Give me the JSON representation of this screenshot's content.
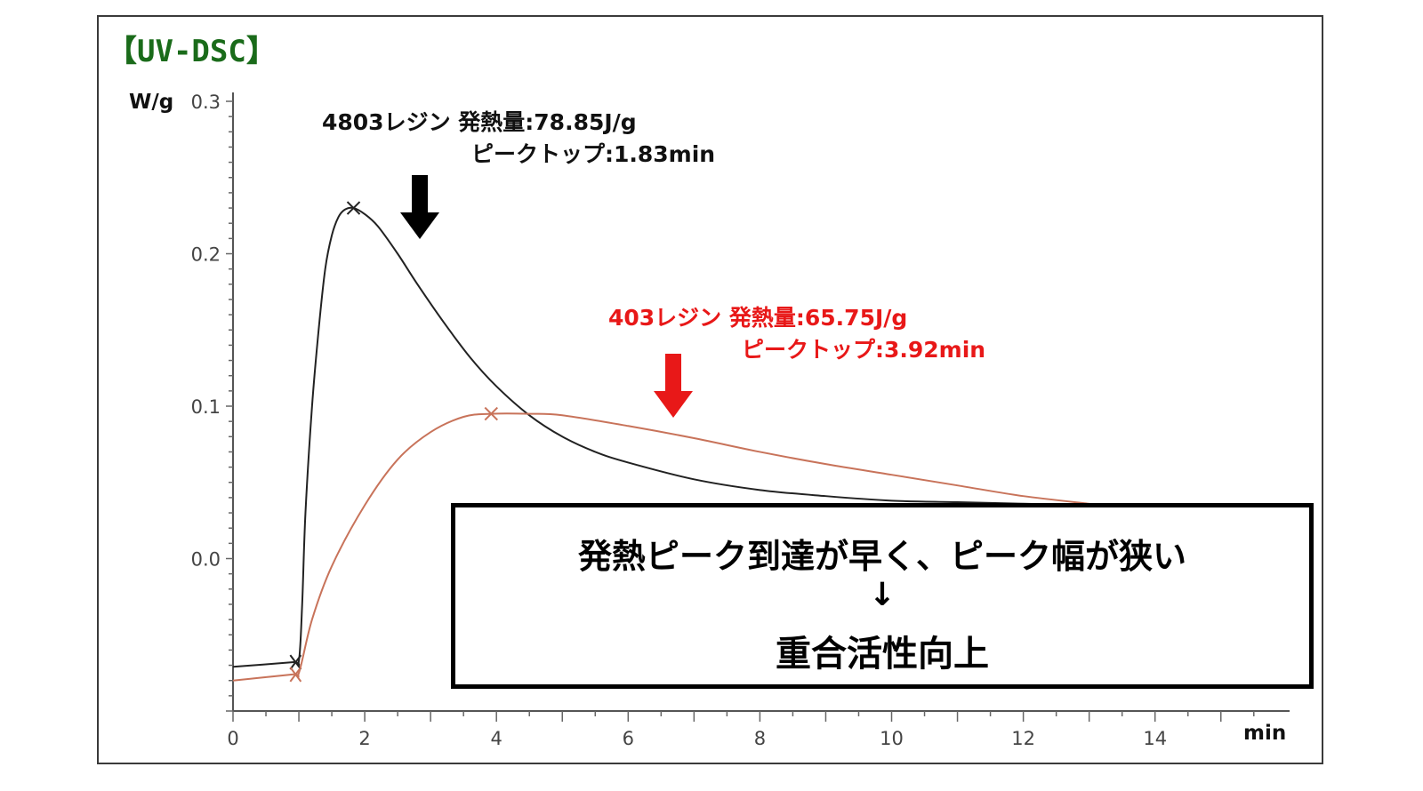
{
  "title": "【UV-DSC】",
  "annotations": {
    "black": {
      "line1": "4803レジン  発熱量:78.85J/g",
      "line2": "ピークトップ:1.83min",
      "color": "#111111"
    },
    "red": {
      "line1": "403レジン  発熱量:65.75J/g",
      "line2": "ピークトップ:3.92min",
      "color": "#e81818"
    }
  },
  "conclusion": {
    "line1": "発熱ピーク到達が早く、ピーク幅が狭い",
    "arrow": "↓",
    "line2": "重合活性向上"
  },
  "colors": {
    "black_series": "#222222",
    "red_series": "#c8735a",
    "black_arrow": "#000000",
    "red_arrow": "#e81818"
  },
  "chart_data": {
    "type": "line",
    "title": "",
    "xlabel": "min",
    "ylabel": "W/g",
    "xlim": [
      0,
      15.8
    ],
    "ylim": [
      -0.1,
      0.3
    ],
    "xticks": [
      0,
      2,
      4,
      6,
      8,
      10,
      12,
      14
    ],
    "xtick_labels": [
      "0",
      "2",
      "4",
      "6",
      "8",
      "10",
      "12",
      "14"
    ],
    "yticks": [
      0.0,
      0.1,
      0.2,
      0.3
    ],
    "ytick_labels": [
      "0.0",
      "0.1",
      "0.2",
      "0.3"
    ],
    "grid": false,
    "series": [
      {
        "name": "4803レジン",
        "x": [
          0.0,
          0.9,
          1.0,
          1.05,
          1.1,
          1.2,
          1.3,
          1.4,
          1.5,
          1.6,
          1.7,
          1.83,
          2.0,
          2.2,
          2.5,
          2.8,
          3.2,
          3.6,
          4.0,
          4.5,
          5.0,
          5.5,
          6.0,
          7.0,
          8.0,
          9.0,
          10.0,
          11.0,
          12.0,
          13.0
        ],
        "y": [
          -0.071,
          -0.068,
          -0.067,
          -0.03,
          0.03,
          0.1,
          0.15,
          0.19,
          0.212,
          0.224,
          0.229,
          0.23,
          0.226,
          0.218,
          0.2,
          0.18,
          0.155,
          0.132,
          0.113,
          0.094,
          0.08,
          0.07,
          0.063,
          0.052,
          0.045,
          0.041,
          0.038,
          0.037,
          0.036,
          0.035
        ]
      },
      {
        "name": "403レジン",
        "x": [
          0.0,
          0.9,
          1.0,
          1.2,
          1.5,
          2.0,
          2.5,
          3.0,
          3.5,
          3.92,
          4.5,
          5.0,
          6.0,
          7.0,
          8.0,
          9.0,
          10.0,
          11.0,
          12.0,
          13.0
        ],
        "y": [
          -0.08,
          -0.076,
          -0.075,
          -0.04,
          -0.005,
          0.035,
          0.065,
          0.083,
          0.093,
          0.095,
          0.095,
          0.094,
          0.087,
          0.079,
          0.07,
          0.062,
          0.055,
          0.048,
          0.041,
          0.036
        ]
      }
    ],
    "peaks": [
      {
        "series": "4803レジン",
        "x": 1.83,
        "y": 0.23
      },
      {
        "series": "403レジン",
        "x": 3.92,
        "y": 0.095
      }
    ]
  }
}
